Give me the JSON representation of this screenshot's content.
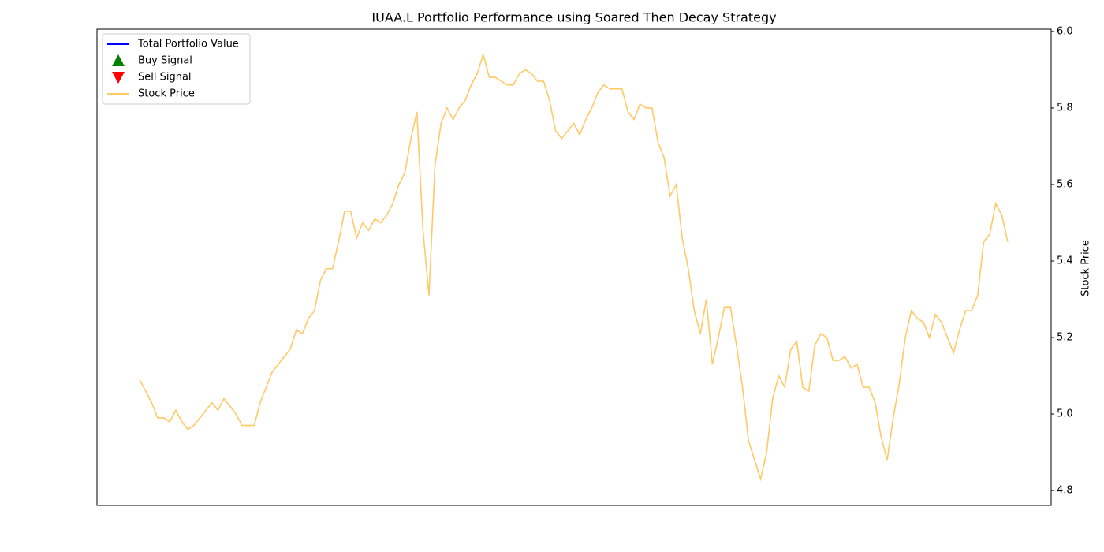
{
  "chart_data": {
    "type": "line",
    "title": "IUAA.L Portfolio Performance using Soared Then Decay Strategy",
    "y2label": "Stock Price",
    "y2lim": [
      4.761,
      6.006
    ],
    "y2ticks": [
      {
        "value": 4.8,
        "label": "4.8"
      },
      {
        "value": 5.0,
        "label": "5.0"
      },
      5.2,
      5.4,
      5.6,
      5.8,
      {
        "value": 6.0,
        "label": "6.0"
      }
    ],
    "legend": "upper left",
    "series": [
      {
        "name": "Total Portfolio Value",
        "color": "#0000ff",
        "marker": "line",
        "values": []
      },
      {
        "name": "Buy Signal",
        "color": "#008000",
        "marker": "^",
        "values": []
      },
      {
        "name": "Sell Signal",
        "color": "#ff0000",
        "marker": "v",
        "values": []
      },
      {
        "name": "Stock Price",
        "color": "#ffa500",
        "marker": "line",
        "axis": "y2",
        "values": [
          5.09,
          5.06,
          5.03,
          4.99,
          4.99,
          4.98,
          5.01,
          4.98,
          4.96,
          4.97,
          4.99,
          5.01,
          5.03,
          5.01,
          5.04,
          5.02,
          5.0,
          4.97,
          4.97,
          4.97,
          5.03,
          5.07,
          5.11,
          5.13,
          5.15,
          5.17,
          5.22,
          5.21,
          5.25,
          5.27,
          5.35,
          5.38,
          5.38,
          5.45,
          5.53,
          5.53,
          5.46,
          5.5,
          5.48,
          5.51,
          5.5,
          5.52,
          5.55,
          5.6,
          5.63,
          5.72,
          5.79,
          5.48,
          5.31,
          5.65,
          5.76,
          5.8,
          5.77,
          5.8,
          5.82,
          5.86,
          5.89,
          5.94,
          5.88,
          5.88,
          5.87,
          5.86,
          5.86,
          5.89,
          5.9,
          5.89,
          5.87,
          5.87,
          5.82,
          5.74,
          5.72,
          5.74,
          5.76,
          5.73,
          5.77,
          5.8,
          5.84,
          5.86,
          5.85,
          5.85,
          5.85,
          5.79,
          5.77,
          5.81,
          5.8,
          5.8,
          5.71,
          5.67,
          5.57,
          5.6,
          5.46,
          5.38,
          5.27,
          5.21,
          5.3,
          5.13,
          5.2,
          5.28,
          5.28,
          5.18,
          5.07,
          4.93,
          4.88,
          4.83,
          4.9,
          5.04,
          5.1,
          5.07,
          5.17,
          5.19,
          5.07,
          5.06,
          5.18,
          5.21,
          5.2,
          5.14,
          5.14,
          5.15,
          5.12,
          5.13,
          5.07,
          5.07,
          5.03,
          4.94,
          4.88,
          4.99,
          5.08,
          5.2,
          5.27,
          5.25,
          5.24,
          5.2,
          5.26,
          5.24,
          5.2,
          5.16,
          5.22,
          5.27,
          5.27,
          5.31,
          5.45,
          5.47,
          5.55,
          5.52,
          5.45
        ]
      }
    ]
  }
}
